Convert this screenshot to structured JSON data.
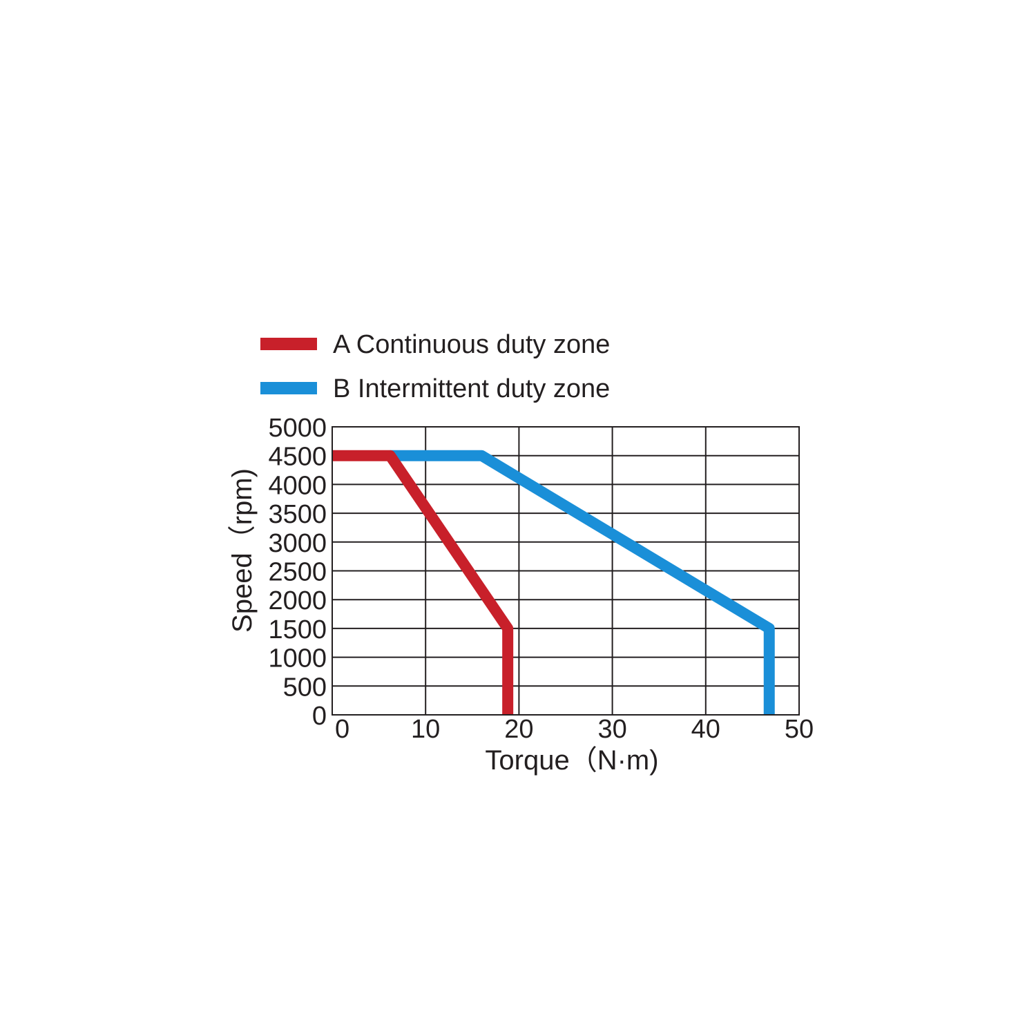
{
  "chart_data": {
    "type": "line",
    "xlabel": "Torque（N·m)",
    "ylabel": "Speed（rpm)",
    "xlim": [
      0,
      50
    ],
    "ylim": [
      0,
      5000
    ],
    "x_ticks": [
      0,
      10,
      20,
      30,
      40,
      50
    ],
    "y_ticks": [
      0,
      500,
      1000,
      1500,
      2000,
      2500,
      3000,
      3500,
      4000,
      4500,
      5000
    ],
    "grid": true,
    "legend_position": "top-left",
    "series": [
      {
        "name": "A Continuous duty zone",
        "color": "#c8202a",
        "points": [
          [
            0,
            4500
          ],
          [
            6.2,
            4500
          ],
          [
            18.8,
            1500
          ],
          [
            18.8,
            0
          ]
        ]
      },
      {
        "name": "B Intermittent duty zone",
        "color": "#1a8fd8",
        "points": [
          [
            6.2,
            4500
          ],
          [
            16,
            4500
          ],
          [
            46.8,
            1500
          ],
          [
            46.8,
            0
          ]
        ]
      }
    ]
  }
}
